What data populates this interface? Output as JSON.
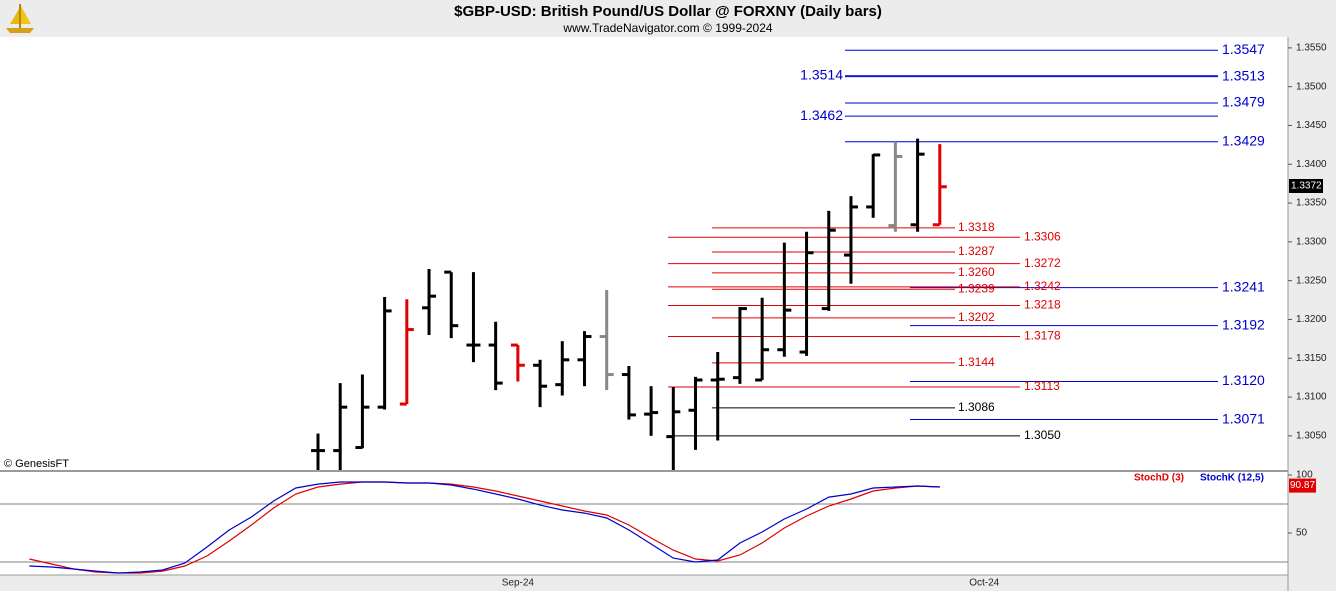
{
  "header": {
    "title": "$GBP-USD:  British Pound/US Dollar @ FORXNY  (Daily bars)",
    "subtitle": "www.TradeNavigator.com © 1999-2024",
    "watermark": "© GenesisFT"
  },
  "chart_data": [
    {
      "type": "ohlc",
      "open": [
        null,
        null,
        null,
        null,
        null,
        null,
        null,
        null,
        null,
        null,
        null,
        null,
        null,
        null,
        1.3031,
        1.3031,
        1.3035,
        1.3087,
        1.3091,
        1.3215,
        1.3261,
        1.3167,
        1.3167,
        1.3167,
        1.3141,
        1.3116,
        1.3148,
        1.3178,
        1.3129,
        1.3078,
        1.3049,
        1.3083,
        1.3122,
        1.3125,
        1.3122,
        1.3161,
        1.3158,
        1.3214,
        1.3283,
        1.3345,
        1.3321,
        1.3322,
        1.3322,
        null,
        null,
        null,
        null,
        null,
        null,
        null,
        null,
        null,
        null,
        null,
        null,
        null,
        null,
        null
      ],
      "high": [
        null,
        null,
        null,
        null,
        null,
        null,
        null,
        null,
        null,
        null,
        null,
        null,
        null,
        null,
        1.3053,
        1.3118,
        1.3129,
        1.3229,
        1.3226,
        1.3265,
        1.3261,
        1.3261,
        1.3197,
        1.3167,
        1.3148,
        1.3172,
        1.3185,
        1.3238,
        1.314,
        1.3114,
        1.3113,
        1.3126,
        1.3158,
        1.3216,
        1.3228,
        1.3299,
        1.3313,
        1.334,
        1.3359,
        1.3413,
        1.3429,
        1.3433,
        1.3426,
        null,
        null,
        null,
        null,
        null,
        null,
        null,
        null,
        null,
        null,
        null,
        null,
        null,
        null,
        null
      ],
      "low": [
        null,
        null,
        null,
        null,
        null,
        null,
        null,
        null,
        null,
        null,
        null,
        null,
        null,
        null,
        1.2995,
        1.2995,
        1.3034,
        1.3084,
        1.3091,
        1.318,
        1.3176,
        1.3145,
        1.3109,
        1.312,
        1.3087,
        1.3102,
        1.3114,
        1.3109,
        1.3071,
        1.305,
        1.3,
        1.3032,
        1.3044,
        1.3117,
        1.3122,
        1.3152,
        1.3153,
        1.3211,
        1.3246,
        1.3331,
        1.3313,
        1.3313,
        1.3322,
        null,
        null,
        null,
        null,
        null,
        null,
        null,
        null,
        null,
        null,
        null,
        null,
        null,
        null,
        null
      ],
      "close": [
        null,
        null,
        null,
        null,
        null,
        null,
        null,
        null,
        null,
        null,
        null,
        null,
        null,
        null,
        1.3031,
        1.3087,
        1.3087,
        1.3211,
        1.3187,
        1.323,
        1.3192,
        1.3167,
        1.3118,
        1.3141,
        1.3114,
        1.3148,
        1.3178,
        1.3129,
        1.3077,
        1.308,
        1.3081,
        1.3122,
        1.3123,
        1.3214,
        1.3161,
        1.3212,
        1.3286,
        1.3315,
        1.3345,
        1.3412,
        1.341,
        1.3413,
        1.3371,
        null,
        null,
        null,
        null,
        null,
        null,
        null,
        null,
        null,
        null,
        null,
        null,
        null,
        null,
        null
      ],
      "bar_colors": [
        null,
        null,
        null,
        null,
        null,
        null,
        null,
        null,
        null,
        null,
        null,
        null,
        null,
        null,
        "#000000",
        "#000000",
        "#000000",
        "#000000",
        "#e00000",
        "#000000",
        "#000000",
        "#000000",
        "#000000",
        "#e00000",
        "#000000",
        "#000000",
        "#000000",
        "#888888",
        "#000000",
        "#000000",
        "#000000",
        "#000000",
        "#000000",
        "#000000",
        "#000000",
        "#000000",
        "#000000",
        "#000000",
        "#000000",
        "#000000",
        "#888888",
        "#000000",
        "#e00000",
        null,
        null,
        null,
        null,
        null,
        null,
        null,
        null,
        null,
        null,
        null,
        null,
        null,
        null,
        null
      ],
      "ylim": [
        1.3006,
        1.3564
      ],
      "yticks": [
        {
          "value": 1.305,
          "label": "1.3050"
        },
        {
          "value": 1.31,
          "label": "1.3100"
        },
        {
          "value": 1.315,
          "label": "1.3150"
        },
        {
          "value": 1.32,
          "label": "1.3200"
        },
        {
          "value": 1.325,
          "label": "1.3250"
        },
        {
          "value": 1.33,
          "label": "1.3300"
        },
        {
          "value": 1.335,
          "label": "1.3350"
        },
        {
          "value": 1.34,
          "label": "1.3400"
        },
        {
          "value": 1.345,
          "label": "1.3450"
        },
        {
          "value": 1.35,
          "label": "1.3500"
        },
        {
          "value": 1.355,
          "label": "1.3550"
        }
      ],
      "last_value": 1.3372,
      "levels": [
        {
          "value": 1.3547,
          "color": "#0000cc",
          "group": "right"
        },
        {
          "value": 1.3514,
          "color": "#0000cc",
          "group": "left"
        },
        {
          "value": 1.3513,
          "color": "#0000cc",
          "group": "right"
        },
        {
          "value": 1.3479,
          "color": "#0000cc",
          "group": "right"
        },
        {
          "value": 1.3462,
          "color": "#0000cc",
          "group": "left"
        },
        {
          "value": 1.3429,
          "color": "#0000cc",
          "group": "right"
        },
        {
          "value": 1.3241,
          "color": "#0000cc",
          "group": "right-low"
        },
        {
          "value": 1.3192,
          "color": "#0000cc",
          "group": "right-low"
        },
        {
          "value": 1.312,
          "label": "1.3120",
          "color": "#0000cc",
          "group": "right-low"
        },
        {
          "value": 1.3071,
          "color": "#0000cc",
          "group": "right-low"
        },
        {
          "value": 1.3318,
          "color": "#e00000",
          "group": "inner"
        },
        {
          "value": 1.3306,
          "color": "#e00000",
          "group": "outer"
        },
        {
          "value": 1.3287,
          "color": "#e00000",
          "group": "inner"
        },
        {
          "value": 1.3272,
          "color": "#e00000",
          "group": "outer"
        },
        {
          "value": 1.326,
          "label": "1.3260",
          "color": "#e00000",
          "group": "inner"
        },
        {
          "value": 1.3242,
          "color": "#e00000",
          "group": "outer"
        },
        {
          "value": 1.3239,
          "color": "#e00000",
          "group": "inner"
        },
        {
          "value": 1.3218,
          "color": "#e00000",
          "group": "outer"
        },
        {
          "value": 1.3202,
          "color": "#e00000",
          "group": "inner"
        },
        {
          "value": 1.3178,
          "color": "#e00000",
          "group": "outer"
        },
        {
          "value": 1.3144,
          "color": "#e00000",
          "group": "inner"
        },
        {
          "value": 1.3113,
          "color": "#e00000",
          "group": "outer"
        },
        {
          "value": 1.3086,
          "color": "#000000",
          "group": "inner"
        },
        {
          "value": 1.305,
          "label": "1.3050",
          "color": "#000000",
          "group": "outer"
        }
      ]
    },
    {
      "type": "line",
      "categories": [
        null,
        null,
        null,
        null,
        null,
        null,
        null,
        null,
        null,
        null,
        null,
        null,
        null,
        null,
        null,
        null,
        null,
        null,
        null,
        null,
        null,
        null,
        null,
        "Sep-24",
        null,
        null,
        null,
        null,
        null,
        null,
        null,
        null,
        null,
        null,
        null,
        null,
        null,
        null,
        null,
        null,
        null,
        null,
        null,
        null,
        "Oct-24",
        null,
        null,
        null,
        null,
        null,
        null,
        null,
        null,
        null,
        null,
        null,
        null,
        null
      ],
      "series": [
        {
          "name": "StochD (3)",
          "color": "#e00000",
          "values": [
            null,
            27.6,
            23.3,
            19.0,
            16.4,
            15.5,
            15.5,
            17.2,
            21.6,
            30.2,
            43.1,
            56.9,
            71.6,
            83.6,
            89.7,
            92.2,
            94.0,
            94.0,
            93.1,
            93.1,
            92.2,
            89.7,
            86.2,
            81.9,
            77.6,
            73.3,
            69.0,
            65.5,
            56.9,
            45.7,
            35.3,
            27.6,
            25.9,
            31.0,
            41.4,
            54.3,
            64.7,
            73.3,
            79.3,
            86.2,
            88.8,
            90.5,
            89.7,
            null,
            null,
            null,
            null,
            null,
            null,
            null,
            null,
            null,
            null,
            null,
            null,
            null,
            null,
            null
          ]
        },
        {
          "name": "StochK (12,5)",
          "color": "#0000cc",
          "values": [
            null,
            21.6,
            20.7,
            19.0,
            17.2,
            15.5,
            16.4,
            18.1,
            24.1,
            37.9,
            52.6,
            63.8,
            77.6,
            88.8,
            92.2,
            94.0,
            94.0,
            94.0,
            93.1,
            93.1,
            91.4,
            87.9,
            83.6,
            79.3,
            74.1,
            69.8,
            67.2,
            62.9,
            52.6,
            40.5,
            28.4,
            25.0,
            26.7,
            41.4,
            50.9,
            62.1,
            70.7,
            81.0,
            83.6,
            88.8,
            89.7,
            90.5,
            89.7,
            null,
            null,
            null,
            null,
            null,
            null,
            null,
            null,
            null,
            null,
            null,
            null,
            null,
            null,
            null
          ]
        }
      ],
      "ylim": [
        13.8,
        102.6
      ],
      "yticks": [
        50,
        100
      ],
      "levels": [
        25,
        75
      ],
      "last_value": 90.87
    }
  ]
}
